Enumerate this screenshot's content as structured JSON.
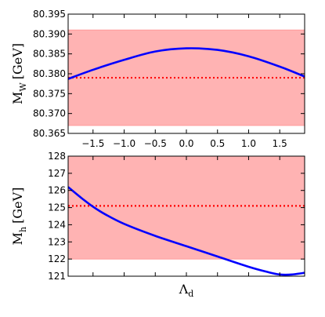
{
  "chart_data": [
    {
      "type": "line",
      "title": "",
      "xlabel": "",
      "ylabel_main": "M",
      "ylabel_sub": "W",
      "ylabel_unit": "[GeV]",
      "xlim": [
        -1.9,
        1.9
      ],
      "ylim": [
        80.365,
        80.395
      ],
      "x_ticks": [
        -1.5,
        -1.0,
        -0.5,
        0.0,
        0.5,
        1.0,
        1.5
      ],
      "x_tick_labels": [
        "−1.5",
        "−1.0",
        "−0.5",
        "0.0",
        "0.5",
        "1.0",
        "1.5"
      ],
      "y_ticks": [
        80.365,
        80.37,
        80.375,
        80.38,
        80.385,
        80.39,
        80.395
      ],
      "y_tick_labels": [
        "80.365",
        "80.370",
        "80.375",
        "80.380",
        "80.385",
        "80.390",
        "80.395"
      ],
      "band": {
        "low": 80.367,
        "high": 80.391,
        "color": "#ffb3b3",
        "edge": "#ff9a9a"
      },
      "reference_line": {
        "y": 80.379,
        "style": "dotted",
        "color": "#ff0000"
      },
      "series": [
        {
          "color": "#0000ff",
          "x": [
            -1.9,
            -1.5,
            -1.0,
            -0.5,
            0.0,
            0.5,
            1.0,
            1.5,
            1.9
          ],
          "y": [
            80.3787,
            80.381,
            80.3835,
            80.3856,
            80.3864,
            80.386,
            80.3844,
            80.3818,
            80.3793
          ]
        }
      ]
    },
    {
      "type": "line",
      "title": "",
      "xlabel_main": "Λ",
      "xlabel_sub": "d",
      "ylabel_main": "M",
      "ylabel_sub": "h",
      "ylabel_unit": "[GeV]",
      "xlim": [
        -1.9,
        1.9
      ],
      "ylim": [
        121,
        128
      ],
      "x_ticks": [
        -1.5,
        -1.0,
        -0.5,
        0.0,
        0.5,
        1.0,
        1.5
      ],
      "x_tick_labels": [],
      "y_ticks": [
        121,
        122,
        123,
        124,
        125,
        126,
        127,
        128
      ],
      "y_tick_labels": [
        "121",
        "122",
        "123",
        "124",
        "125",
        "126",
        "127",
        "128"
      ],
      "band": {
        "low": 122,
        "high": 128,
        "color": "#ffb3b3",
        "edge": "#ff9a9a"
      },
      "reference_line": {
        "y": 125.1,
        "style": "dotted",
        "color": "#ff0000"
      },
      "series": [
        {
          "color": "#0000ff",
          "x": [
            -1.9,
            -1.7,
            -1.5,
            -1.3,
            -1.0,
            -0.5,
            0.0,
            0.5,
            1.0,
            1.3,
            1.5,
            1.7,
            1.9
          ],
          "y": [
            126.2,
            125.6,
            125.05,
            124.6,
            124.05,
            123.35,
            122.75,
            122.15,
            121.55,
            121.25,
            121.1,
            121.1,
            121.2
          ]
        }
      ]
    }
  ]
}
